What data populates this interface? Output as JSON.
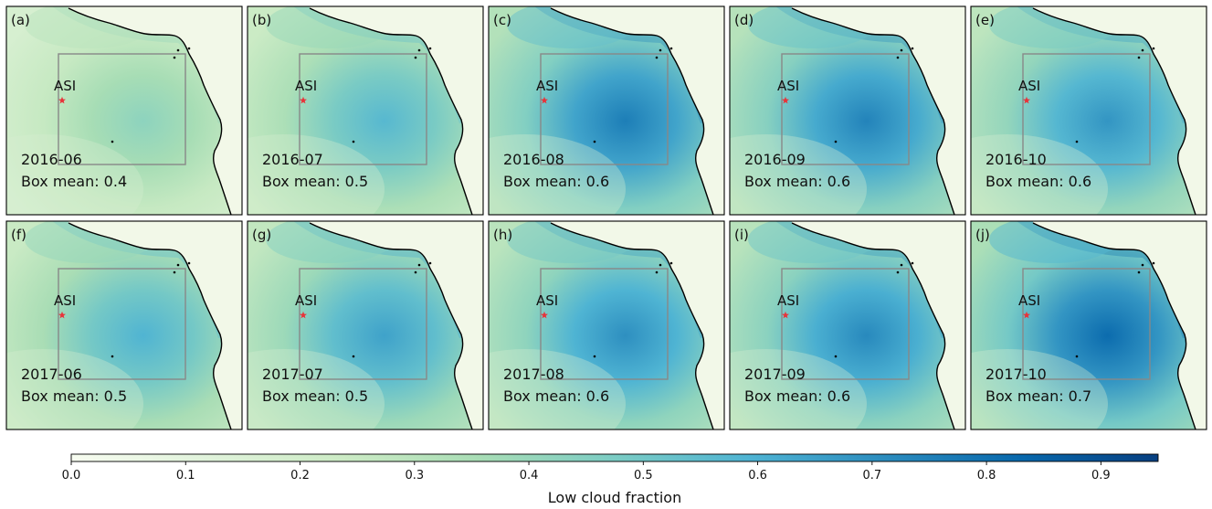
{
  "chart_data": {
    "type": "heatmap",
    "variable_label": "Low cloud fraction",
    "marker_label": "ASI",
    "mean_prefix": "Box mean: ",
    "colorbar": {
      "range": [
        0.0,
        0.95
      ],
      "ticks": [
        "0.0",
        "0.1",
        "0.2",
        "0.3",
        "0.4",
        "0.5",
        "0.6",
        "0.7",
        "0.8",
        "0.9"
      ],
      "tick_values": [
        0.0,
        0.1,
        0.2,
        0.3,
        0.4,
        0.5,
        0.6,
        0.7,
        0.8,
        0.9
      ],
      "colors": [
        "#f7fcf0",
        "#e0f3db",
        "#ccebc5",
        "#a8ddb5",
        "#7bccc4",
        "#4eb3d3",
        "#2b8cbe",
        "#0868ac",
        "#084081"
      ]
    },
    "panels": [
      {
        "label": "(a)",
        "month": "2016-06",
        "box_mean": "0.4",
        "intensity": 0.45
      },
      {
        "label": "(b)",
        "month": "2016-07",
        "box_mean": "0.5",
        "intensity": 0.6
      },
      {
        "label": "(c)",
        "month": "2016-08",
        "box_mean": "0.6",
        "intensity": 0.8
      },
      {
        "label": "(d)",
        "month": "2016-09",
        "box_mean": "0.6",
        "intensity": 0.78
      },
      {
        "label": "(e)",
        "month": "2016-10",
        "box_mean": "0.6",
        "intensity": 0.72
      },
      {
        "label": "(f)",
        "month": "2017-06",
        "box_mean": "0.5",
        "intensity": 0.62
      },
      {
        "label": "(g)",
        "month": "2017-07",
        "box_mean": "0.5",
        "intensity": 0.68
      },
      {
        "label": "(h)",
        "month": "2017-08",
        "box_mean": "0.6",
        "intensity": 0.74
      },
      {
        "label": "(i)",
        "month": "2017-09",
        "box_mean": "0.6",
        "intensity": 0.76
      },
      {
        "label": "(j)",
        "month": "2017-10",
        "box_mean": "0.7",
        "intensity": 0.86
      }
    ]
  }
}
